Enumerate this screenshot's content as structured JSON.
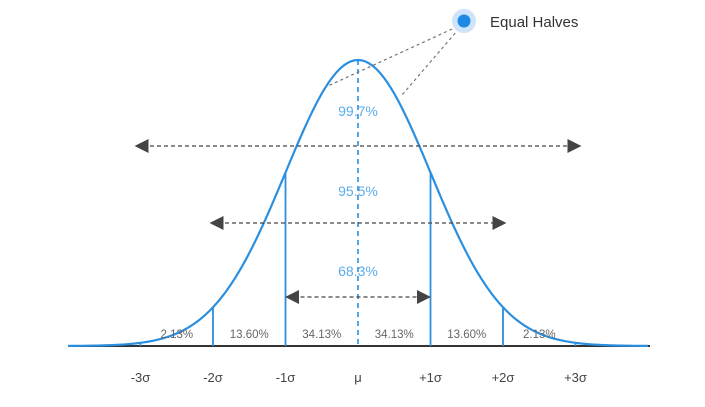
{
  "colors": {
    "curve": "#2b8fe0",
    "center_line": "#2b8fe0",
    "arrow": "#444444",
    "legend_dot": "#1e88e5",
    "legend_halo": "#cfe4fa"
  },
  "legend": {
    "label": "Equal Halves",
    "icon": "blue-dot-icon"
  },
  "ranges": [
    {
      "label": "99.7%",
      "from": -3,
      "to": 3
    },
    {
      "label": "95.5%",
      "from": -2,
      "to": 2
    },
    {
      "label": "68.3%",
      "from": -1,
      "to": 1
    }
  ],
  "segments": [
    {
      "label": "2.13%",
      "from": -3,
      "to": -2
    },
    {
      "label": "13.60%",
      "from": -2,
      "to": -1
    },
    {
      "label": "34.13%",
      "from": -1,
      "to": 0
    },
    {
      "label": "34.13%",
      "from": 0,
      "to": 1
    },
    {
      "label": "13.60%",
      "from": 1,
      "to": 2
    },
    {
      "label": "2.13%",
      "from": 2,
      "to": 3
    }
  ],
  "axis_ticks": [
    {
      "value": -3,
      "label": "-3σ"
    },
    {
      "value": -2,
      "label": "-2σ"
    },
    {
      "value": -1,
      "label": "-1σ"
    },
    {
      "value": 0,
      "label": "μ"
    },
    {
      "value": 1,
      "label": "+1σ"
    },
    {
      "value": 2,
      "label": "+2σ"
    },
    {
      "value": 3,
      "label": "+3σ"
    }
  ]
}
